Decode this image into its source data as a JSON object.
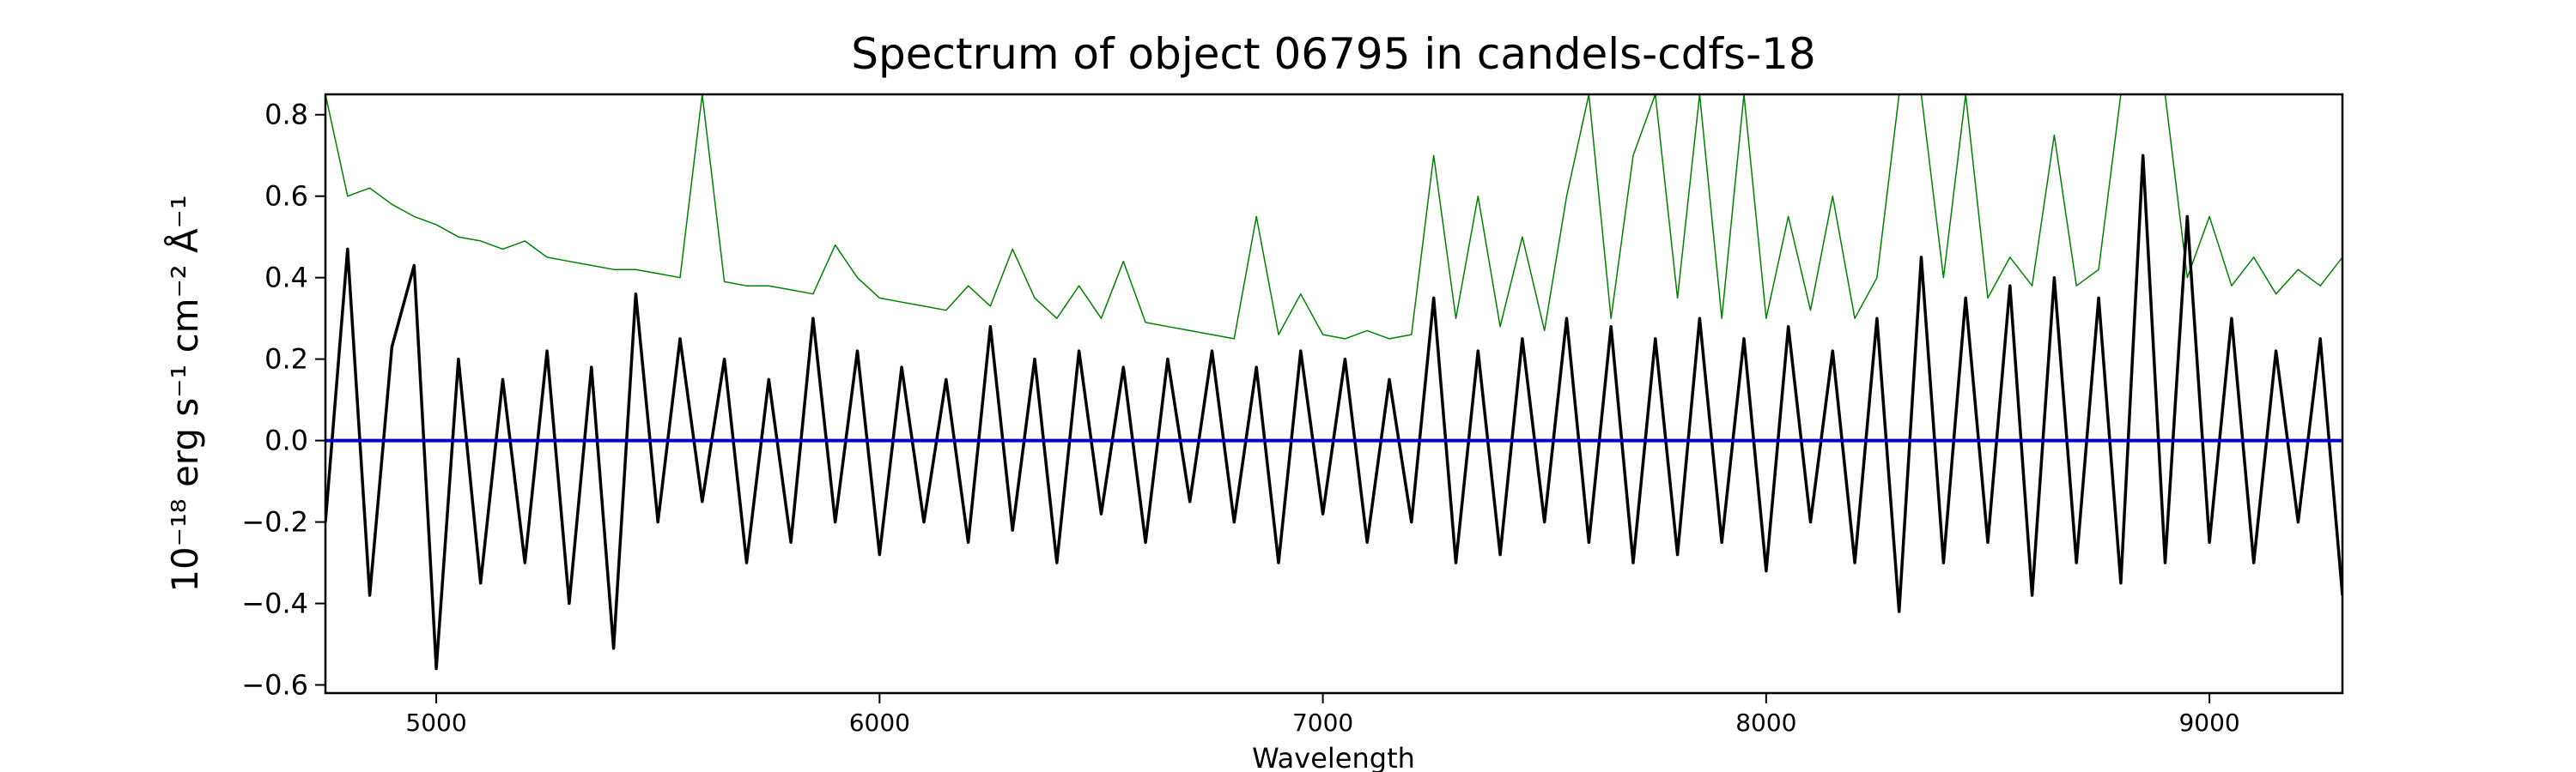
{
  "chart_data": {
    "type": "line",
    "title": "Spectrum of object 06795 in candels-cdfs-18",
    "x_label": "Wavelength",
    "y_label": "10⁻¹⁸ erg s⁻¹ cm⁻² Å⁻¹",
    "x": [
      4750,
      4800,
      4850,
      4900,
      4950,
      5000,
      5050,
      5100,
      5150,
      5200,
      5250,
      5300,
      5350,
      5400,
      5450,
      5500,
      5550,
      5600,
      5650,
      5700,
      5750,
      5800,
      5850,
      5900,
      5950,
      6000,
      6050,
      6100,
      6150,
      6200,
      6250,
      6300,
      6350,
      6400,
      6450,
      6500,
      6550,
      6600,
      6650,
      6700,
      6750,
      6800,
      6850,
      6900,
      6950,
      7000,
      7050,
      7100,
      7150,
      7200,
      7250,
      7300,
      7350,
      7400,
      7450,
      7500,
      7550,
      7600,
      7650,
      7700,
      7750,
      7800,
      7850,
      7900,
      7950,
      8000,
      8050,
      8100,
      8150,
      8200,
      8250,
      8300,
      8350,
      8400,
      8450,
      8500,
      8550,
      8600,
      8650,
      8700,
      8750,
      8800,
      8850,
      8900,
      8950,
      9000,
      9050,
      9100,
      9150,
      9200,
      9250,
      9300
    ],
    "series": [
      {
        "color": "#008000",
        "values": [
          0.85,
          0.6,
          0.62,
          0.58,
          0.55,
          0.53,
          0.5,
          0.49,
          0.47,
          0.49,
          0.45,
          0.44,
          0.43,
          0.42,
          0.42,
          0.41,
          0.4,
          0.85,
          0.39,
          0.38,
          0.38,
          0.37,
          0.36,
          0.48,
          0.4,
          0.35,
          0.34,
          0.33,
          0.32,
          0.38,
          0.33,
          0.47,
          0.35,
          0.3,
          0.38,
          0.3,
          0.44,
          0.29,
          0.28,
          0.27,
          0.26,
          0.25,
          0.55,
          0.26,
          0.36,
          0.26,
          0.25,
          0.27,
          0.25,
          0.26,
          0.7,
          0.3,
          0.6,
          0.28,
          0.5,
          0.27,
          0.6,
          0.85,
          0.3,
          0.7,
          0.85,
          0.35,
          0.85,
          0.3,
          0.85,
          0.3,
          0.55,
          0.32,
          0.6,
          0.3,
          0.4,
          0.85,
          0.85,
          0.4,
          0.85,
          0.35,
          0.45,
          0.38,
          0.75,
          0.38,
          0.42,
          0.85,
          0.85,
          0.85,
          0.4,
          0.55,
          0.38,
          0.45,
          0.36,
          0.42,
          0.38,
          0.45
        ]
      },
      {
        "color": "#000000",
        "values": [
          -0.2,
          0.47,
          -0.38,
          0.23,
          0.43,
          -0.56,
          0.2,
          -0.35,
          0.15,
          -0.3,
          0.22,
          -0.4,
          0.18,
          -0.51,
          0.36,
          -0.2,
          0.25,
          -0.15,
          0.2,
          -0.3,
          0.15,
          -0.25,
          0.3,
          -0.2,
          0.22,
          -0.28,
          0.18,
          -0.2,
          0.15,
          -0.25,
          0.28,
          -0.22,
          0.2,
          -0.3,
          0.22,
          -0.18,
          0.18,
          -0.25,
          0.2,
          -0.15,
          0.22,
          -0.2,
          0.18,
          -0.3,
          0.22,
          -0.18,
          0.2,
          -0.25,
          0.15,
          -0.2,
          0.35,
          -0.3,
          0.22,
          -0.28,
          0.25,
          -0.2,
          0.3,
          -0.25,
          0.28,
          -0.3,
          0.25,
          -0.28,
          0.3,
          -0.25,
          0.25,
          -0.32,
          0.28,
          -0.2,
          0.22,
          -0.3,
          0.3,
          -0.42,
          0.45,
          -0.3,
          0.35,
          -0.25,
          0.38,
          -0.38,
          0.4,
          -0.3,
          0.35,
          -0.35,
          0.7,
          -0.3,
          0.55,
          -0.25,
          0.3,
          -0.3,
          0.22,
          -0.2,
          0.25,
          -0.38
        ]
      }
    ],
    "hline": {
      "value": 0,
      "color": "#0000cd"
    },
    "xlim": [
      4750,
      9300
    ],
    "xticks": [
      5000,
      6000,
      7000,
      8000,
      9000
    ],
    "ylim": [
      -0.62,
      0.85
    ],
    "yticks": [
      {
        "value": -0.6,
        "label": "−0.6"
      },
      {
        "value": -0.4,
        "label": "−0.4"
      },
      {
        "value": -0.2,
        "label": "−0.2"
      },
      {
        "value": 0,
        "label": "0.0"
      },
      0.2,
      0.4,
      0.6,
      0.8
    ]
  }
}
